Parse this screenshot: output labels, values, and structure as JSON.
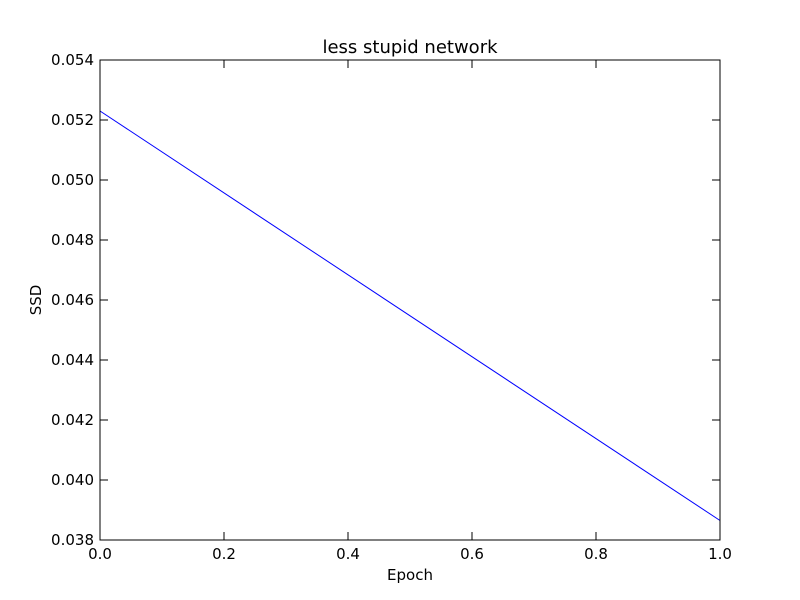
{
  "chart_data": {
    "type": "line",
    "title": "less stupid network",
    "xlabel": "Epoch",
    "ylabel": "SSD",
    "xlim": [
      0.0,
      1.0
    ],
    "ylim": [
      0.038,
      0.054
    ],
    "grid": false,
    "x_ticks": [
      "0.0",
      "0.2",
      "0.4",
      "0.6",
      "0.8",
      "1.0"
    ],
    "y_ticks": [
      "0.038",
      "0.040",
      "0.042",
      "0.044",
      "0.046",
      "0.048",
      "0.050",
      "0.052",
      "0.054"
    ],
    "series": [
      {
        "color": "#0000ff",
        "x": [
          0.0,
          1.0
        ],
        "y": [
          0.0523,
          0.03865
        ]
      }
    ]
  }
}
